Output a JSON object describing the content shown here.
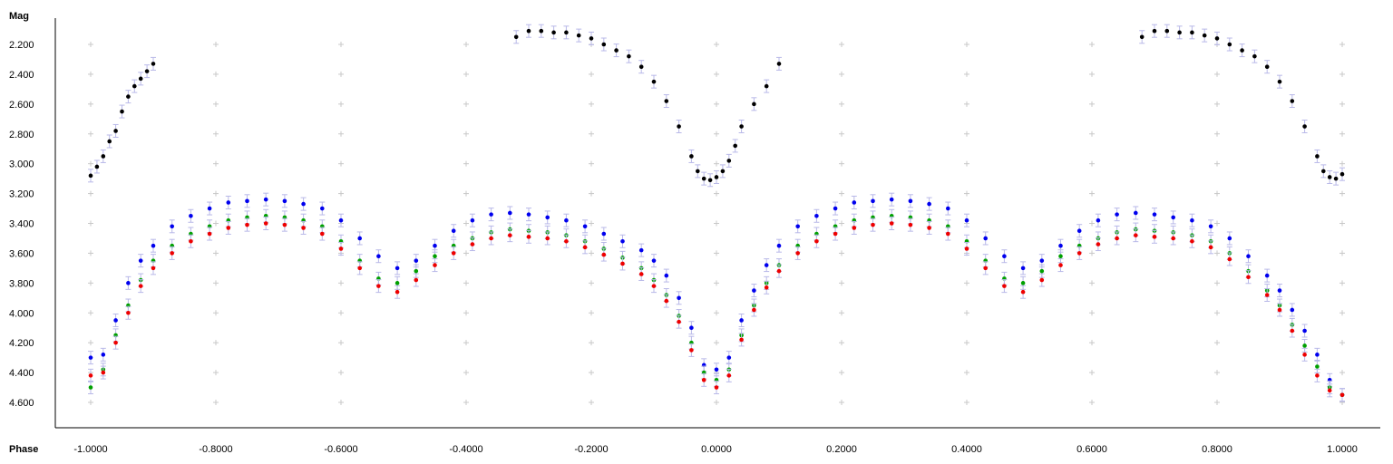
{
  "chart_data": {
    "type": "scatter",
    "title": "",
    "xlabel": "Phase",
    "ylabel": "Mag",
    "xlim": [
      -1.0,
      1.0
    ],
    "ylim": [
      2.1,
      4.65
    ],
    "y_inverted": true,
    "grid": "plus-markers",
    "x_ticks": [
      "-1.0000",
      "-0.8000",
      "-0.6000",
      "-0.4000",
      "-0.2000",
      "0.0000",
      "0.2000",
      "0.4000",
      "0.6000",
      "0.8000",
      "1.0000"
    ],
    "y_ticks": [
      "2.200",
      "2.400",
      "2.600",
      "2.800",
      "3.000",
      "3.200",
      "3.400",
      "3.600",
      "3.800",
      "4.000",
      "4.200",
      "4.400",
      "4.600"
    ],
    "colors": {
      "black": "#000000",
      "blue": "#0000ee",
      "green": "#00a000",
      "red": "#ee0000",
      "errorbar": "#b8b8e8"
    },
    "series": [
      {
        "color": "#000000",
        "segments": [
          {
            "x": [
              -1.0,
              -0.99,
              -0.98,
              -0.97,
              -0.96,
              -0.95,
              -0.94,
              -0.93,
              -0.92,
              -0.91,
              -0.9
            ],
            "y": [
              3.08,
              3.02,
              2.95,
              2.85,
              2.78,
              2.65,
              2.55,
              2.48,
              2.43,
              2.38,
              2.33
            ]
          },
          {
            "x": [
              -0.32,
              -0.3,
              -0.28,
              -0.26,
              -0.24,
              -0.22,
              -0.2,
              -0.18,
              -0.16,
              -0.14,
              -0.12,
              -0.1,
              -0.08,
              -0.06,
              -0.04,
              -0.03,
              -0.02,
              -0.01,
              0.0,
              0.01,
              0.02,
              0.03,
              0.04,
              0.06,
              0.08,
              0.1
            ],
            "y": [
              2.15,
              2.11,
              2.11,
              2.12,
              2.12,
              2.14,
              2.16,
              2.2,
              2.24,
              2.28,
              2.35,
              2.45,
              2.58,
              2.75,
              2.95,
              3.05,
              3.1,
              3.11,
              3.09,
              3.05,
              2.98,
              2.88,
              2.75,
              2.6,
              2.48,
              2.33
            ]
          },
          {
            "x": [
              0.68,
              0.7,
              0.72,
              0.74,
              0.76,
              0.78,
              0.8,
              0.82,
              0.84,
              0.86,
              0.88,
              0.9,
              0.92,
              0.94,
              0.96,
              0.97,
              0.98,
              0.99,
              1.0
            ],
            "y": [
              2.15,
              2.11,
              2.11,
              2.12,
              2.12,
              2.14,
              2.16,
              2.2,
              2.24,
              2.28,
              2.35,
              2.45,
              2.58,
              2.75,
              2.95,
              3.05,
              3.09,
              3.1,
              3.07
            ]
          }
        ]
      },
      {
        "color": "#0000ee",
        "x": [
          -1.0,
          -0.98,
          -0.96,
          -0.94,
          -0.92,
          -0.9,
          -0.87,
          -0.84,
          -0.81,
          -0.78,
          -0.75,
          -0.72,
          -0.69,
          -0.66,
          -0.63,
          -0.6,
          -0.57,
          -0.54,
          -0.51,
          -0.48,
          -0.45,
          -0.42,
          -0.39,
          -0.36,
          -0.33,
          -0.3,
          -0.27,
          -0.24,
          -0.21,
          -0.18,
          -0.15,
          -0.12,
          -0.1,
          -0.08,
          -0.06,
          -0.04,
          -0.02,
          0.0,
          0.02,
          0.04,
          0.06,
          0.08,
          0.1,
          0.13,
          0.16,
          0.19,
          0.22,
          0.25,
          0.28,
          0.31,
          0.34,
          0.37,
          0.4,
          0.43,
          0.46,
          0.49,
          0.52,
          0.55,
          0.58,
          0.61,
          0.64,
          0.67,
          0.7,
          0.73,
          0.76,
          0.79,
          0.82,
          0.85,
          0.88,
          0.9,
          0.92,
          0.94,
          0.96,
          0.98,
          1.0
        ],
        "y": [
          4.3,
          4.28,
          4.05,
          3.8,
          3.65,
          3.55,
          3.42,
          3.35,
          3.3,
          3.26,
          3.25,
          3.24,
          3.25,
          3.27,
          3.3,
          3.38,
          3.5,
          3.62,
          3.7,
          3.65,
          3.55,
          3.45,
          3.38,
          3.34,
          3.33,
          3.34,
          3.36,
          3.38,
          3.42,
          3.47,
          3.52,
          3.58,
          3.65,
          3.75,
          3.9,
          4.1,
          4.35,
          4.38,
          4.3,
          4.05,
          3.85,
          3.68,
          3.55,
          3.42,
          3.35,
          3.3,
          3.26,
          3.25,
          3.24,
          3.25,
          3.27,
          3.3,
          3.38,
          3.5,
          3.62,
          3.7,
          3.65,
          3.55,
          3.45,
          3.38,
          3.34,
          3.33,
          3.34,
          3.36,
          3.38,
          3.42,
          3.5,
          3.62,
          3.75,
          3.85,
          3.98,
          4.12,
          4.28,
          4.45,
          4.55
        ]
      },
      {
        "color": "#00a000",
        "x": [
          -1.0,
          -0.98,
          -0.96,
          -0.94,
          -0.92,
          -0.9,
          -0.87,
          -0.84,
          -0.81,
          -0.78,
          -0.75,
          -0.72,
          -0.69,
          -0.66,
          -0.63,
          -0.6,
          -0.57,
          -0.54,
          -0.51,
          -0.48,
          -0.45,
          -0.42,
          -0.39,
          -0.36,
          -0.33,
          -0.3,
          -0.27,
          -0.24,
          -0.21,
          -0.18,
          -0.15,
          -0.12,
          -0.1,
          -0.08,
          -0.06,
          -0.04,
          -0.02,
          0.0,
          0.02,
          0.04,
          0.06,
          0.08,
          0.1,
          0.13,
          0.16,
          0.19,
          0.22,
          0.25,
          0.28,
          0.31,
          0.34,
          0.37,
          0.4,
          0.43,
          0.46,
          0.49,
          0.52,
          0.55,
          0.58,
          0.61,
          0.64,
          0.67,
          0.7,
          0.73,
          0.76,
          0.79,
          0.82,
          0.85,
          0.88,
          0.9,
          0.92,
          0.94,
          0.96,
          0.98,
          1.0
        ],
        "y": [
          4.5,
          4.38,
          4.15,
          3.95,
          3.78,
          3.65,
          3.55,
          3.47,
          3.42,
          3.38,
          3.36,
          3.35,
          3.36,
          3.38,
          3.42,
          3.52,
          3.65,
          3.77,
          3.8,
          3.72,
          3.62,
          3.55,
          3.5,
          3.46,
          3.44,
          3.45,
          3.46,
          3.48,
          3.52,
          3.57,
          3.63,
          3.7,
          3.78,
          3.88,
          4.02,
          4.2,
          4.4,
          4.45,
          4.38,
          4.15,
          3.95,
          3.8,
          3.68,
          3.55,
          3.47,
          3.42,
          3.38,
          3.36,
          3.35,
          3.36,
          3.38,
          3.42,
          3.52,
          3.65,
          3.77,
          3.8,
          3.72,
          3.62,
          3.55,
          3.5,
          3.46,
          3.44,
          3.45,
          3.46,
          3.48,
          3.52,
          3.6,
          3.72,
          3.85,
          3.95,
          4.08,
          4.22,
          4.36,
          4.5,
          4.55
        ]
      },
      {
        "color": "#ee0000",
        "x": [
          -1.0,
          -0.98,
          -0.96,
          -0.94,
          -0.92,
          -0.9,
          -0.87,
          -0.84,
          -0.81,
          -0.78,
          -0.75,
          -0.72,
          -0.69,
          -0.66,
          -0.63,
          -0.6,
          -0.57,
          -0.54,
          -0.51,
          -0.48,
          -0.45,
          -0.42,
          -0.39,
          -0.36,
          -0.33,
          -0.3,
          -0.27,
          -0.24,
          -0.21,
          -0.18,
          -0.15,
          -0.12,
          -0.1,
          -0.08,
          -0.06,
          -0.04,
          -0.02,
          0.0,
          0.02,
          0.04,
          0.06,
          0.08,
          0.1,
          0.13,
          0.16,
          0.19,
          0.22,
          0.25,
          0.28,
          0.31,
          0.34,
          0.37,
          0.4,
          0.43,
          0.46,
          0.49,
          0.52,
          0.55,
          0.58,
          0.61,
          0.64,
          0.67,
          0.7,
          0.73,
          0.76,
          0.79,
          0.82,
          0.85,
          0.88,
          0.9,
          0.92,
          0.94,
          0.96,
          0.98,
          1.0
        ],
        "y": [
          4.42,
          4.4,
          4.2,
          4.0,
          3.82,
          3.7,
          3.6,
          3.52,
          3.47,
          3.43,
          3.41,
          3.4,
          3.41,
          3.43,
          3.47,
          3.57,
          3.7,
          3.82,
          3.86,
          3.78,
          3.68,
          3.6,
          3.54,
          3.5,
          3.48,
          3.49,
          3.5,
          3.52,
          3.56,
          3.61,
          3.67,
          3.74,
          3.82,
          3.92,
          4.06,
          4.25,
          4.45,
          4.5,
          4.42,
          4.18,
          3.98,
          3.83,
          3.72,
          3.6,
          3.52,
          3.47,
          3.43,
          3.41,
          3.4,
          3.41,
          3.43,
          3.47,
          3.57,
          3.7,
          3.82,
          3.86,
          3.78,
          3.68,
          3.6,
          3.54,
          3.5,
          3.48,
          3.49,
          3.5,
          3.52,
          3.56,
          3.64,
          3.76,
          3.88,
          3.98,
          4.12,
          4.28,
          4.42,
          4.52,
          4.55
        ]
      }
    ]
  }
}
